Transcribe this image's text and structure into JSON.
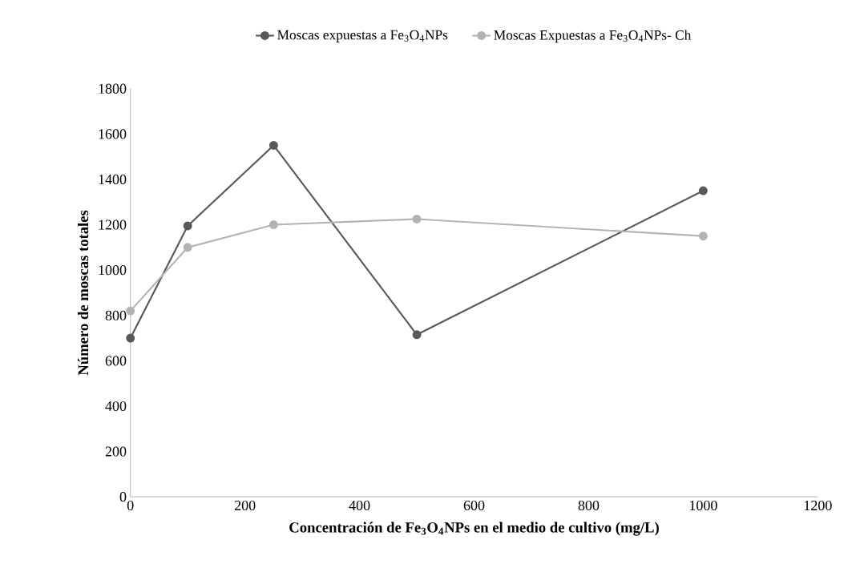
{
  "chart_data": {
    "type": "line",
    "xlabel": "Concentración de Fe$_{3}$O$_{4}$NPs en el medio de cultivo (mg/L)",
    "ylabel": "Número de moscas totales",
    "x": [
      0,
      100,
      250,
      500,
      1000
    ],
    "series": [
      {
        "name": "Moscas expuestas a Fe$_{3}$O$_{4}$NPs",
        "color": "#595959",
        "values": [
          700,
          1195,
          1550,
          715,
          1350
        ]
      },
      {
        "name": "Moscas Expuestas a Fe$_{3}$O$_{4}$NPs- Ch",
        "color": "#b3b3b3",
        "values": [
          820,
          1100,
          1200,
          1225,
          1150
        ]
      }
    ],
    "xlim": [
      0,
      1200
    ],
    "xticks": [
      0,
      200,
      400,
      600,
      800,
      1000,
      1200
    ],
    "ylim": [
      0,
      1800
    ],
    "yticks": [
      0,
      200,
      400,
      600,
      800,
      1000,
      1200,
      1400,
      1600,
      1800
    ],
    "grid": false,
    "legend": "top",
    "marker": "circle",
    "line_style": "solid"
  }
}
